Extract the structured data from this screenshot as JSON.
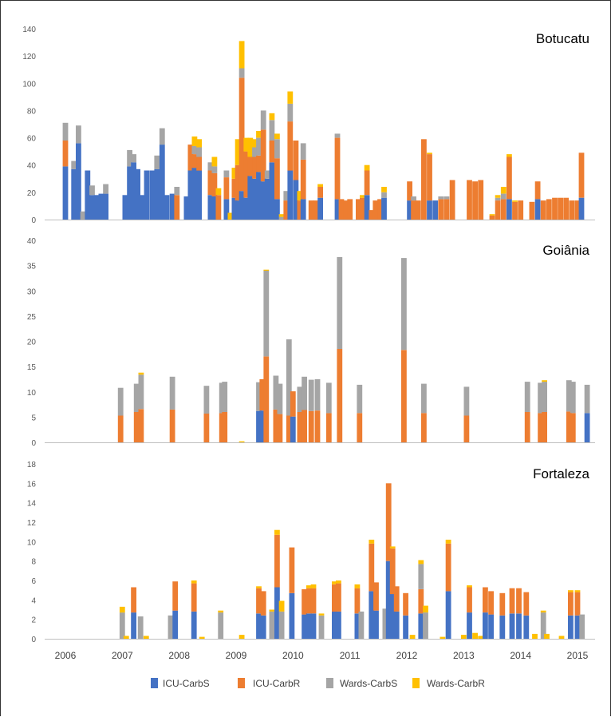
{
  "colors": {
    "ICU-CarbS": "#4472C4",
    "ICU-CarbR": "#ED7D31",
    "Wards-CarbS": "#A5A5A5",
    "Wards-CarbR": "#FFC000",
    "axis": "#bfbfbf",
    "text": "#595959"
  },
  "chart_data": [
    {
      "type": "bar",
      "stacked": true,
      "title": "Botucatu",
      "ylim": [
        0,
        140
      ],
      "yticks": [
        0,
        20,
        40,
        60,
        80,
        100,
        120,
        140
      ],
      "grid": false,
      "series_names": [
        "ICU-CarbS",
        "ICU-CarbR",
        "Wards-CarbS",
        "Wards-CarbR"
      ],
      "x": [
        2006.0,
        2006.07,
        2006.15,
        2006.23,
        2006.31,
        2006.39,
        2006.47,
        2006.55,
        2006.63,
        2006.71,
        2006.81,
        2006.89,
        2006.97,
        2007.05,
        2007.13,
        2007.2,
        2007.27,
        2007.35,
        2007.43,
        2007.53,
        2007.61,
        2007.7,
        2007.78,
        2007.88,
        2007.96,
        2008.05,
        2008.13,
        2008.2,
        2008.27,
        2008.35,
        2008.43,
        2008.48,
        2008.55,
        2008.62,
        2008.69,
        2008.76,
        2008.83,
        2008.9,
        2008.97,
        2009.03,
        2009.1,
        2009.18,
        2009.25,
        2009.33,
        2009.4,
        2009.48,
        2009.55,
        2009.63,
        2009.72,
        2009.8,
        2009.88,
        2009.95,
        2010.05,
        2010.12,
        2010.18,
        2010.25,
        2010.32,
        2010.4,
        2010.48,
        2010.55,
        2010.62,
        2010.7,
        2010.78,
        2010.85,
        2010.93,
        2011.0,
        2011.08,
        2011.15,
        2011.22,
        2011.3,
        2011.38,
        2011.45,
        2011.53,
        2011.6,
        2011.68,
        2011.75,
        2011.83,
        2011.9,
        2011.97,
        2012.05,
        2012.12,
        2012.2,
        2012.3,
        2012.4,
        2012.5,
        2012.6,
        2012.7,
        2012.8,
        2012.9,
        2013.0,
        2013.1,
        2013.2,
        2013.3,
        2013.4,
        2013.5,
        2013.6,
        2013.7,
        2013.8,
        2013.9,
        2014.0,
        2014.1,
        2014.2,
        2014.3,
        2014.4,
        2014.5,
        2014.6,
        2014.7,
        2014.8,
        2014.9,
        2015.0,
        2015.07
      ],
      "series": [
        {
          "name": "ICU-CarbS",
          "values": [
            39,
            0,
            37,
            56,
            0,
            36,
            18,
            18,
            19,
            19,
            0,
            0,
            0,
            18,
            39,
            42,
            37,
            18,
            36,
            36,
            37,
            55,
            18,
            19,
            0,
            0,
            17,
            36,
            38,
            36,
            0,
            0,
            18,
            17,
            0,
            0,
            15,
            0,
            16,
            14,
            21,
            16,
            32,
            30,
            35,
            28,
            30,
            42,
            15,
            0,
            0,
            36,
            29,
            0,
            15,
            0,
            0,
            0,
            16,
            0,
            0,
            0,
            15,
            0,
            0,
            0,
            0,
            0,
            0,
            18,
            0,
            0,
            0,
            16,
            0,
            0,
            0,
            0,
            0,
            14,
            0,
            0,
            0,
            14,
            14,
            0,
            0,
            0,
            0,
            0,
            0,
            0,
            0,
            0,
            0,
            0,
            0,
            15,
            0,
            0,
            0,
            0,
            15,
            0,
            0,
            0,
            0,
            0,
            0,
            0,
            16
          ]
        },
        {
          "name": "ICU-CarbR",
          "values": [
            19,
            0,
            0,
            0,
            0,
            0,
            0,
            0,
            0,
            0,
            0,
            0,
            0,
            0,
            0,
            0,
            0,
            0,
            0,
            0,
            0,
            0,
            0,
            0,
            18,
            0,
            0,
            19,
            10,
            10,
            0,
            0,
            18,
            17,
            18,
            0,
            16,
            0,
            14,
            26,
            83,
            34,
            14,
            16,
            12,
            38,
            0,
            16,
            30,
            0,
            14,
            36,
            29,
            14,
            29,
            0,
            14,
            14,
            8,
            0,
            0,
            0,
            45,
            15,
            14,
            15,
            0,
            15,
            16,
            18,
            7,
            14,
            15,
            0,
            0,
            0,
            0,
            0,
            0,
            14,
            14,
            14,
            59,
            34,
            0,
            15,
            15,
            29,
            0,
            0,
            29,
            28,
            29,
            0,
            3,
            14,
            15,
            31,
            13,
            14,
            0,
            13,
            13,
            14,
            15,
            16,
            16,
            16,
            14,
            14,
            33
          ]
        },
        {
          "name": "Wards-CarbS",
          "values": [
            13,
            0,
            6,
            13,
            6,
            0,
            7,
            0,
            0,
            7,
            0,
            0,
            0,
            0,
            12,
            6,
            0,
            0,
            0,
            0,
            10,
            12,
            0,
            0,
            6,
            0,
            0,
            0,
            6,
            7,
            0,
            0,
            6,
            5,
            0,
            0,
            5,
            0,
            0,
            0,
            7,
            0,
            0,
            7,
            13,
            14,
            6,
            15,
            14,
            2,
            7,
            13,
            0,
            0,
            12,
            0,
            0,
            0,
            0,
            0,
            0,
            0,
            3,
            0,
            0,
            0,
            0,
            0,
            0,
            0,
            0,
            0,
            0,
            4,
            0,
            0,
            0,
            0,
            0,
            0,
            3,
            0,
            0,
            0,
            0,
            2,
            2,
            0,
            0,
            0,
            0,
            0,
            0,
            0,
            0,
            2,
            4,
            0,
            0,
            0,
            0,
            0,
            0,
            0,
            0,
            0,
            0,
            0,
            0,
            0,
            0
          ]
        },
        {
          "name": "Wards-CarbR",
          "values": [
            0,
            0,
            0,
            0,
            0,
            0,
            0,
            0,
            0,
            0,
            0,
            0,
            0,
            0,
            0,
            0,
            0,
            0,
            0,
            0,
            0,
            0,
            0,
            0,
            0,
            0,
            0,
            0,
            7,
            6,
            0,
            0,
            0,
            7,
            5,
            0,
            0,
            5,
            8,
            19,
            20,
            10,
            14,
            6,
            5,
            0,
            0,
            5,
            4,
            2,
            0,
            9,
            0,
            7,
            0,
            0,
            0,
            0,
            2,
            0,
            0,
            0,
            0,
            0,
            0,
            0,
            0,
            0,
            2,
            4,
            0,
            0,
            0,
            4,
            0,
            0,
            0,
            0,
            0,
            0,
            0,
            0,
            0,
            1,
            0,
            0,
            0,
            0,
            0,
            0,
            0,
            0,
            0,
            0,
            1,
            2,
            5,
            2,
            1,
            0,
            0,
            0,
            0,
            0,
            0,
            0,
            0,
            0,
            0,
            0,
            0
          ]
        }
      ]
    },
    {
      "type": "bar",
      "stacked": true,
      "title": "Goiânia",
      "ylim": [
        0,
        40
      ],
      "yticks": [
        0,
        5,
        10,
        15,
        20,
        25,
        30,
        35,
        40
      ],
      "grid": false,
      "series_names": [
        "ICU-CarbS",
        "ICU-CarbR",
        "Wards-CarbS",
        "Wards-CarbR"
      ],
      "x": [
        2006.97,
        2007.25,
        2007.33,
        2007.4,
        2007.88,
        2008.48,
        2008.75,
        2008.8,
        2009.1,
        2009.4,
        2009.46,
        2009.53,
        2009.7,
        2009.77,
        2009.93,
        2010.0,
        2010.12,
        2010.2,
        2010.32,
        2010.43,
        2010.63,
        2010.82,
        2011.17,
        2011.95,
        2012.3,
        2013.05,
        2014.12,
        2014.35,
        2014.42,
        2014.85,
        2014.92,
        2015.17
      ],
      "series": [
        {
          "name": "ICU-CarbS",
          "values": [
            0,
            0,
            0,
            0,
            0,
            0,
            0,
            0,
            0,
            6.2,
            6.3,
            0,
            0,
            0,
            0,
            5.1,
            0,
            0,
            0,
            0,
            0,
            0,
            0,
            0,
            0,
            0,
            0,
            0,
            0,
            0,
            0,
            5.8
          ]
        },
        {
          "name": "ICU-CarbR",
          "values": [
            5.3,
            6.0,
            6.6,
            0,
            6.5,
            5.7,
            5.8,
            6.0,
            0,
            0,
            6.2,
            17.0,
            6.5,
            5.6,
            5.3,
            5.0,
            6.0,
            6.4,
            6.2,
            6.3,
            5.8,
            18.5,
            5.8,
            18.3,
            5.8,
            5.3,
            6.0,
            5.8,
            6.0,
            6.1,
            5.8,
            0
          ]
        },
        {
          "name": "Wards-CarbS",
          "values": [
            5.5,
            5.6,
            6.8,
            0,
            6.5,
            5.5,
            6.0,
            6.0,
            0,
            5.7,
            0,
            17.0,
            6.7,
            6.0,
            15.1,
            0,
            5.0,
            6.6,
            6.2,
            6.2,
            6.0,
            18.2,
            5.6,
            18.2,
            5.8,
            5.7,
            6.0,
            6.0,
            6.0,
            6.2,
            6.2,
            5.6
          ]
        },
        {
          "name": "Wards-CarbR",
          "values": [
            0,
            0,
            0.4,
            0,
            0,
            0,
            0,
            0,
            0.2,
            0,
            0,
            0.2,
            0,
            0,
            0,
            0,
            0,
            0,
            0,
            0,
            0,
            0,
            0,
            0,
            0,
            0,
            0,
            0,
            0.3,
            0,
            0,
            0
          ]
        }
      ]
    },
    {
      "type": "bar",
      "stacked": true,
      "title": "Fortaleza",
      "ylim": [
        0,
        18
      ],
      "yticks": [
        0,
        2,
        4,
        6,
        8,
        10,
        12,
        14,
        16,
        18
      ],
      "grid": false,
      "xlabel": "",
      "xtick_labels": [
        "2006",
        "2007",
        "2008",
        "2009",
        "2010",
        "2011",
        "2012",
        "2013",
        "2014",
        "2015"
      ],
      "series_names": [
        "ICU-CarbS",
        "ICU-CarbR",
        "Wards-CarbS",
        "Wards-CarbR"
      ],
      "x": [
        2007.0,
        2007.07,
        2007.2,
        2007.32,
        2007.42,
        2007.85,
        2007.93,
        2008.26,
        2008.4,
        2008.73,
        2009.1,
        2009.4,
        2009.48,
        2009.63,
        2009.72,
        2009.8,
        2009.98,
        2010.2,
        2010.28,
        2010.36,
        2010.5,
        2010.73,
        2010.8,
        2011.13,
        2011.2,
        2011.38,
        2011.46,
        2011.62,
        2011.68,
        2011.75,
        2011.82,
        2011.98,
        2012.1,
        2012.25,
        2012.33,
        2012.63,
        2012.73,
        2013.0,
        2013.1,
        2013.2,
        2013.3,
        2013.38,
        2013.48,
        2013.68,
        2013.85,
        2013.97,
        2014.1,
        2014.25,
        2014.4,
        2014.46,
        2014.72,
        2014.88,
        2015.0,
        2015.08
      ],
      "series": [
        {
          "name": "ICU-CarbS",
          "values": [
            0,
            0,
            2.7,
            0,
            0,
            0,
            2.9,
            2.8,
            0,
            0,
            0,
            2.6,
            2.4,
            0,
            5.3,
            0,
            4.7,
            2.5,
            2.6,
            2.6,
            0,
            2.8,
            2.8,
            2.6,
            0,
            4.9,
            2.9,
            0,
            8.0,
            4.6,
            2.8,
            2.4,
            0,
            2.6,
            0,
            0,
            4.9,
            0,
            2.7,
            0,
            0,
            2.7,
            2.5,
            2.4,
            2.6,
            2.6,
            2.4,
            0,
            0,
            0,
            0,
            2.4,
            2.4,
            0
          ]
        },
        {
          "name": "ICU-CarbR",
          "values": [
            0,
            0,
            2.6,
            0,
            0,
            0,
            3.0,
            2.9,
            0,
            0,
            0,
            2.6,
            2.5,
            0,
            5.4,
            0,
            4.7,
            2.6,
            2.6,
            2.6,
            0,
            2.8,
            2.9,
            2.6,
            0,
            4.9,
            2.9,
            0,
            8.0,
            4.7,
            2.6,
            2.3,
            0,
            2.5,
            0,
            0,
            4.9,
            0,
            2.6,
            0,
            0,
            2.6,
            2.4,
            2.3,
            2.6,
            2.6,
            2.4,
            0,
            0,
            0,
            0,
            2.4,
            2.4,
            0
          ]
        },
        {
          "name": "Wards-CarbS",
          "values": [
            2.7,
            0,
            0,
            2.3,
            0,
            2.4,
            0,
            0,
            0,
            2.7,
            0,
            0,
            0,
            2.8,
            0,
            2.8,
            0,
            0,
            0,
            0,
            2.4,
            0,
            0,
            0,
            2.8,
            0,
            0,
            3.1,
            0,
            0,
            0,
            0,
            0,
            2.6,
            2.7,
            0,
            0,
            0,
            0,
            0,
            0,
            0,
            0,
            0,
            0,
            0,
            0,
            0,
            2.7,
            0,
            0,
            0,
            0,
            2.5
          ]
        },
        {
          "name": "Wards-CarbR",
          "values": [
            0.6,
            0.3,
            0,
            0,
            0.3,
            0,
            0,
            0.3,
            0.2,
            0.2,
            0.4,
            0.2,
            0,
            0.2,
            0.5,
            1.1,
            0,
            0,
            0.3,
            0.4,
            0.2,
            0.3,
            0.3,
            0.4,
            0,
            0.4,
            0,
            0,
            0,
            0.2,
            0,
            0,
            0.4,
            0.4,
            0.7,
            0.2,
            0.4,
            0.4,
            0.2,
            0.6,
            0.3,
            0,
            0,
            0,
            0,
            0,
            0,
            0.5,
            0.2,
            0.5,
            0.3,
            0.2,
            0.2,
            0
          ]
        }
      ]
    }
  ]
}
